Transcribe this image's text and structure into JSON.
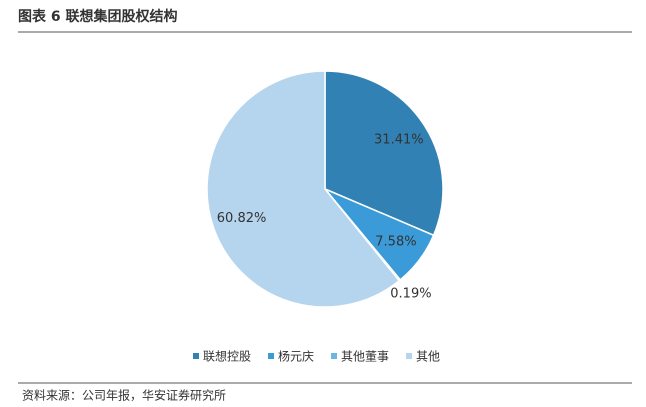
{
  "chart_data": {
    "type": "pie",
    "title": "图表 6 联想集团股权结构",
    "categories": [
      "联想控股",
      "杨元庆",
      "其他董事",
      "其他"
    ],
    "values": [
      31.41,
      7.58,
      0.19,
      60.82
    ],
    "value_labels": [
      "31.41%",
      "7.58%",
      "0.19%",
      "60.82%"
    ],
    "colors": [
      "#3181b4",
      "#3a9bd8",
      "#6bb6e3",
      "#b5d5ee"
    ],
    "legend": "bottom",
    "source": "资料来源：公司年报，华安证券研究所"
  }
}
